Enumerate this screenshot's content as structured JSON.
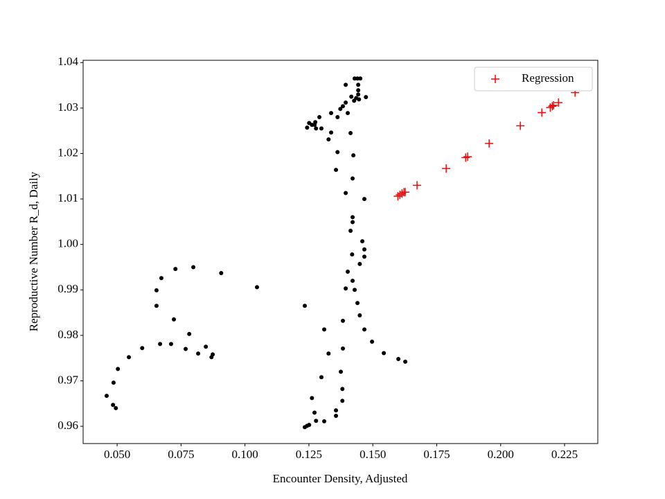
{
  "chart_data": {
    "type": "scatter",
    "xlabel": "Encounter Density, Adjusted",
    "ylabel": "Reproductive Number R_d, Daily",
    "xlim": [
      0.0367,
      0.238
    ],
    "ylim": [
      0.9562,
      1.0405
    ],
    "xticks": [
      {
        "value": 0.05,
        "label": "0.050"
      },
      {
        "value": 0.075,
        "label": "0.075"
      },
      {
        "value": 0.1,
        "label": "0.100"
      },
      {
        "value": 0.125,
        "label": "0.125"
      },
      {
        "value": 0.15,
        "label": "0.150"
      },
      {
        "value": 0.175,
        "label": "0.175"
      },
      {
        "value": 0.2,
        "label": "0.200"
      },
      {
        "value": 0.225,
        "label": "0.225"
      }
    ],
    "yticks": [
      0.96,
      0.97,
      0.98,
      0.99,
      {
        "value": 1.0,
        "label": "1.00"
      },
      1.01,
      1.02,
      1.03,
      1.04
    ],
    "legend": "upper right",
    "series": [
      {
        "color": "#000000",
        "marker": "dot",
        "x": [
          0.144,
          0.1429,
          0.1451,
          0.1443,
          0.1394,
          0.1443,
          0.1443,
          0.1416,
          0.1473,
          0.1435,
          0.1446,
          0.1427,
          0.1394,
          0.1383,
          0.1373,
          0.1402,
          0.1337,
          0.1362,
          0.1275,
          0.1291,
          0.1251,
          0.1262,
          0.1243,
          0.1278,
          0.1299,
          0.1272,
          0.1337,
          0.1413,
          0.1327,
          0.1362,
          0.1424,
          0.1356,
          0.1421,
          0.1394,
          0.1467,
          0.1421,
          0.1421,
          0.1413,
          0.1459,
          0.1467,
          0.1419,
          0.1467,
          0.1449,
          0.1402,
          0.1394,
          0.1421,
          0.1429,
          0.144,
          0.1449,
          0.1383,
          0.1467,
          0.1497,
          0.131,
          0.1234,
          0.1543,
          0.16,
          0.1627,
          0.1327,
          0.1383,
          0.1299,
          0.1375,
          0.1381,
          0.1381,
          0.1262,
          0.1356,
          0.1272,
          0.1356,
          0.1278,
          0.131,
          0.1251,
          0.1234,
          0.1243,
          0.1047,
          0.0907,
          0.0798,
          0.0728,
          0.0673,
          0.0654,
          0.0654,
          0.0722,
          0.0782,
          0.0668,
          0.0711,
          0.0768,
          0.0817,
          0.0847,
          0.0874,
          0.0869,
          0.0598,
          0.0546,
          0.0503,
          0.0486,
          0.0459,
          0.0484,
          0.0495
        ],
        "values": [
          1.0365,
          1.0365,
          1.0365,
          1.0351,
          1.0351,
          1.0339,
          1.033,
          1.0325,
          1.0324,
          1.0322,
          1.0319,
          1.0316,
          1.0312,
          1.0304,
          1.0298,
          1.0289,
          1.0289,
          1.028,
          1.0269,
          1.028,
          1.0267,
          1.0263,
          1.0257,
          1.0255,
          1.0255,
          1.0263,
          1.0246,
          1.0245,
          1.0231,
          1.0203,
          1.0196,
          1.0164,
          1.0145,
          1.0113,
          1.01,
          1.006,
          1.0049,
          1.003,
          1.0007,
          0.9989,
          0.9978,
          0.9973,
          0.9957,
          0.994,
          0.9903,
          0.992,
          0.99,
          0.9871,
          0.9844,
          0.9832,
          0.9813,
          0.9786,
          0.9813,
          0.9865,
          0.9761,
          0.9748,
          0.9742,
          0.976,
          0.9771,
          0.9708,
          0.972,
          0.9682,
          0.9656,
          0.9662,
          0.9635,
          0.963,
          0.9623,
          0.9612,
          0.9611,
          0.9603,
          0.9598,
          0.9601,
          0.9906,
          0.9937,
          0.995,
          0.9946,
          0.9926,
          0.9899,
          0.9865,
          0.9835,
          0.9803,
          0.9781,
          0.9781,
          0.977,
          0.976,
          0.9775,
          0.9758,
          0.9752,
          0.9772,
          0.9752,
          0.9726,
          0.9696,
          0.9667,
          0.9647,
          0.964
        ]
      },
      {
        "name": "Regression",
        "color": "#ff0000",
        "marker": "plus",
        "x": [
          0.1598,
          0.1606,
          0.1614,
          0.1622,
          0.1627,
          0.1673,
          0.1787,
          0.1863,
          0.1871,
          0.1955,
          0.2077,
          0.2161,
          0.2194,
          0.2202,
          0.2207,
          0.2226,
          0.2291
        ],
        "values": [
          1.0106,
          1.0109,
          1.0112,
          1.0115,
          1.0115,
          1.013,
          1.0167,
          1.0191,
          1.0193,
          1.0222,
          1.0261,
          1.029,
          1.0301,
          1.0304,
          1.0306,
          1.0312,
          1.0334
        ]
      }
    ]
  }
}
